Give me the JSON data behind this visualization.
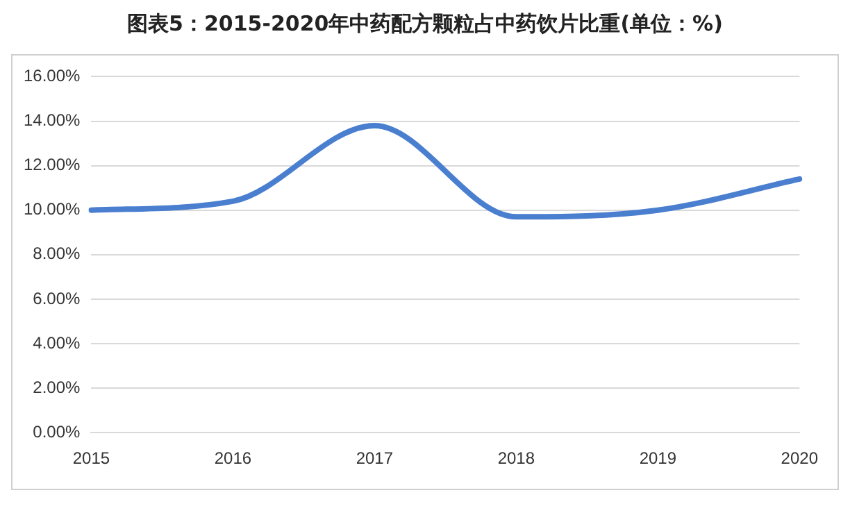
{
  "chart_data": {
    "type": "line",
    "title": "图表5：2015-2020年中药配方颗粒占中药饮片比重(单位：%)",
    "categories": [
      "2015",
      "2016",
      "2017",
      "2018",
      "2019",
      "2020"
    ],
    "series": [
      {
        "color": "#4a7fd0",
        "values": [
          10.0,
          10.4,
          13.8,
          9.7,
          10.0,
          11.4
        ]
      }
    ],
    "ylim": [
      0,
      16
    ],
    "yticks": [
      {
        "value": 0,
        "label": "0.00%"
      },
      {
        "value": 2,
        "label": "2.00%"
      },
      {
        "value": 4,
        "label": "4.00%"
      },
      {
        "value": 6,
        "label": "6.00%"
      },
      {
        "value": 8,
        "label": "8.00%"
      },
      {
        "value": 10,
        "label": "10.00%"
      },
      {
        "value": 12,
        "label": "12.00%"
      },
      {
        "value": 14,
        "label": "14.00%"
      },
      {
        "value": 16,
        "label": "16.00%"
      }
    ],
    "grid": "y",
    "legend": false,
    "marker": "none",
    "line_style": "solid"
  }
}
